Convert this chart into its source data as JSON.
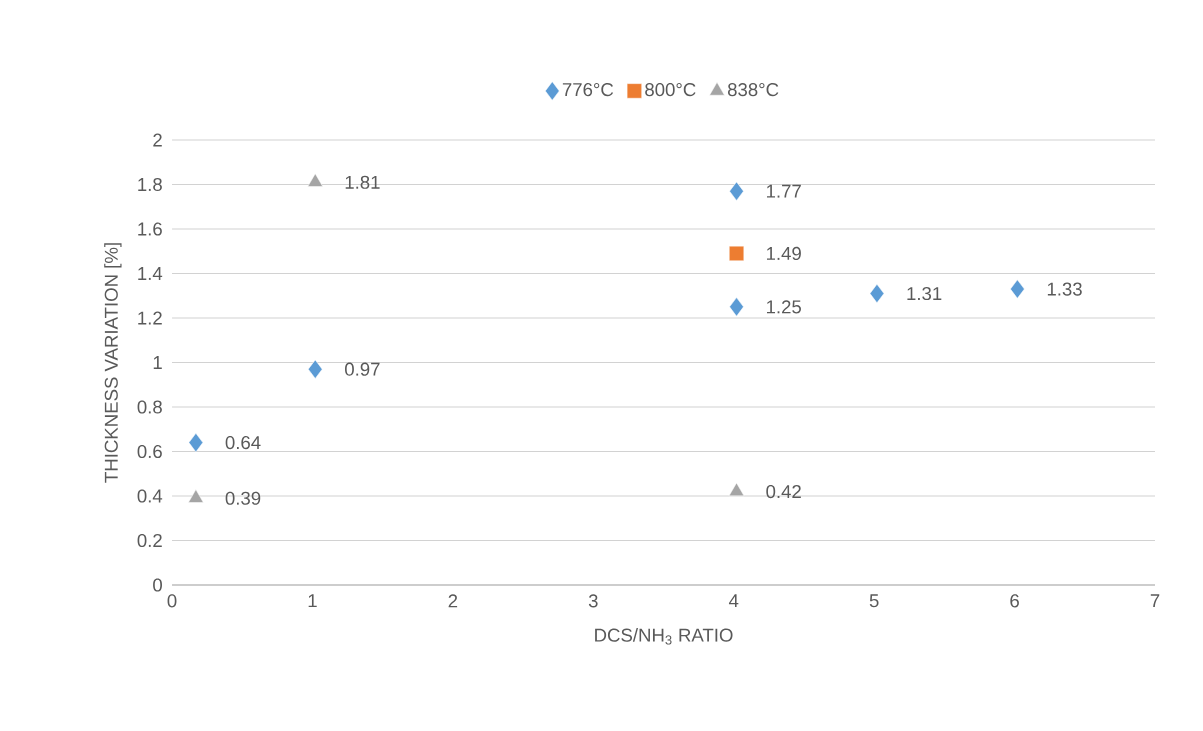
{
  "chart_data": {
    "type": "scatter",
    "xlabel": "DCS/NH$_{3}$ RATIO",
    "ylabel": "THICKNESS VARIATION  [%]",
    "series": [
      {
        "name": "776°C",
        "color": "#5b9bd5",
        "marker": "diamond",
        "x": [
          0.17,
          1.02,
          4.02,
          4.02,
          5.02,
          6.02
        ],
        "values": [
          0.64,
          0.97,
          1.25,
          1.77,
          1.31,
          1.33
        ]
      },
      {
        "name": "800°C",
        "color": "#ed7d31",
        "marker": "square",
        "x": [
          4.02
        ],
        "values": [
          1.49
        ]
      },
      {
        "name": "838°C",
        "color": "#a5a5a5",
        "marker": "triangle",
        "x": [
          0.17,
          1.02,
          4.02
        ],
        "values": [
          0.39,
          1.81,
          0.42
        ]
      }
    ],
    "xlim": [
      0,
      7
    ],
    "ylim": [
      0,
      2
    ],
    "xticks": [
      0,
      1,
      2,
      3,
      4,
      5,
      6,
      7
    ],
    "yticks": [
      0,
      0.2,
      0.4,
      0.6,
      0.8,
      1,
      1.2,
      1.4,
      1.6,
      1.8,
      2
    ],
    "grid": "y",
    "legend": "top",
    "data_labels": true
  }
}
